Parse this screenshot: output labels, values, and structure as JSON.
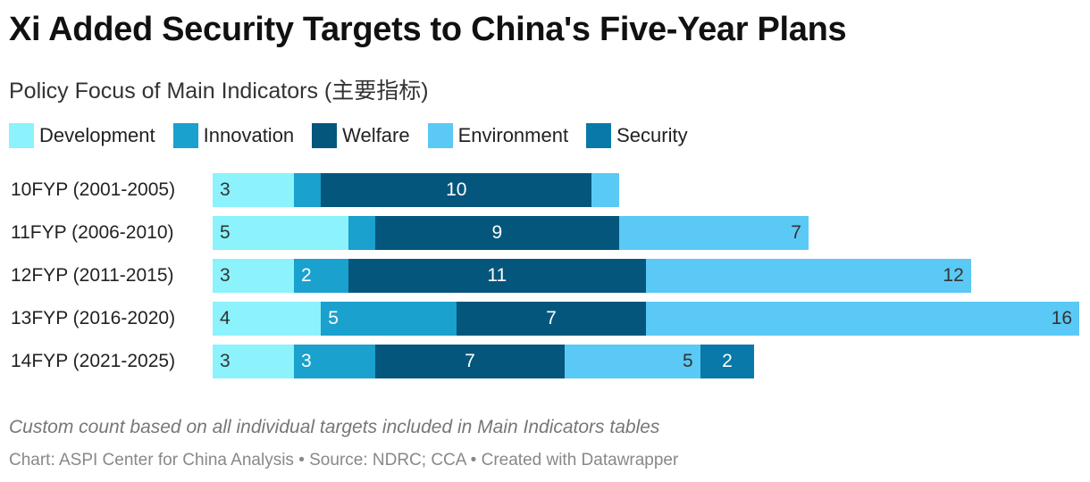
{
  "title": "Xi Added Security Targets to China's Five-Year Plans",
  "subtitle": "Policy Focus of Main Indicators (主要指标)",
  "note": "Custom count based on all individual targets included in Main Indicators tables",
  "footer": "Chart: ASPI Center for China Analysis • Source: NDRC; CCA • Created with Datawrapper",
  "chart_data": {
    "type": "bar",
    "orientation": "horizontal",
    "stacked": true,
    "categories": [
      "10FYP (2001-2005)",
      "11FYP (2006-2010)",
      "12FYP (2011-2015)",
      "13FYP (2016-2020)",
      "14FYP (2021-2025)"
    ],
    "series": [
      {
        "name": "Development",
        "color": "#8cf2fb",
        "values": [
          3,
          5,
          3,
          4,
          3
        ]
      },
      {
        "name": "Innovation",
        "color": "#1aa1cd",
        "values": [
          1,
          1,
          2,
          5,
          3
        ]
      },
      {
        "name": "Welfare",
        "color": "#04567c",
        "values": [
          10,
          9,
          11,
          7,
          7
        ]
      },
      {
        "name": "Environment",
        "color": "#5bc9f5",
        "values": [
          1,
          7,
          12,
          16,
          5
        ]
      },
      {
        "name": "Security",
        "color": "#0879a8",
        "values": [
          0,
          0,
          0,
          0,
          2
        ]
      }
    ],
    "xlim": [
      0,
      32
    ],
    "legend": "top-left",
    "grid": false
  }
}
